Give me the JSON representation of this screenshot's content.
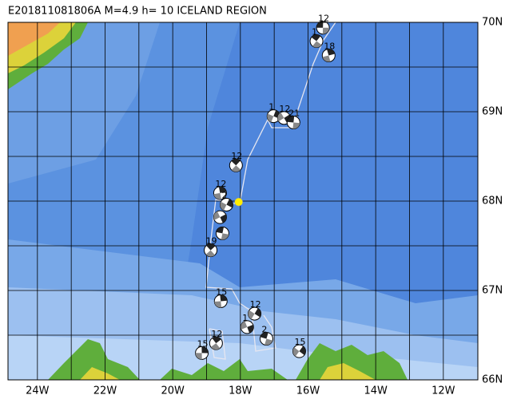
{
  "title": "E201811081806A  M=4.9  h= 10 ICELAND REGION",
  "lonlim": [
    -24.87,
    -10.98
  ],
  "latlim": [
    66,
    70
  ],
  "lonticks": [
    {
      "value": -24,
      "label": "24W"
    },
    {
      "value": -22,
      "label": "22W"
    },
    {
      "value": -20,
      "label": "20W"
    },
    {
      "value": -18,
      "label": "18W"
    },
    {
      "value": -16,
      "label": "16W"
    },
    {
      "value": -14,
      "label": "14W"
    },
    {
      "value": -12,
      "label": "12W"
    }
  ],
  "latticks": [
    {
      "value": 66,
      "label": "66N"
    },
    {
      "value": 67,
      "label": "67N"
    },
    {
      "value": 68,
      "label": "68N"
    },
    {
      "value": 69,
      "label": "69N"
    },
    {
      "value": 70,
      "label": "70N"
    }
  ],
  "epicenter": {
    "lon": -18.05,
    "lat": 67.99,
    "color": "#ffee00"
  },
  "events": [
    {
      "lon": -15.56,
      "lat": 69.94,
      "label": "12"
    },
    {
      "lon": -15.75,
      "lat": 69.79,
      "label": "1"
    },
    {
      "lon": -15.39,
      "lat": 69.63,
      "label": "18"
    },
    {
      "lon": -17.02,
      "lat": 68.95,
      "label": "1"
    },
    {
      "lon": -16.71,
      "lat": 68.93,
      "label": "12"
    },
    {
      "lon": -16.43,
      "lat": 68.88,
      "label": "21"
    },
    {
      "lon": -18.13,
      "lat": 68.4,
      "label": "12"
    },
    {
      "lon": -18.6,
      "lat": 68.09,
      "label": "12"
    },
    {
      "lon": -18.41,
      "lat": 67.96,
      "label": "2"
    },
    {
      "lon": -18.6,
      "lat": 67.82,
      "label": null
    },
    {
      "lon": -18.53,
      "lat": 67.64,
      "label": null
    },
    {
      "lon": -18.88,
      "lat": 67.45,
      "label": "19"
    },
    {
      "lon": -18.58,
      "lat": 66.88,
      "label": "15"
    },
    {
      "lon": -17.58,
      "lat": 66.74,
      "label": "12"
    },
    {
      "lon": -17.8,
      "lat": 66.59,
      "label": "1"
    },
    {
      "lon": -17.23,
      "lat": 66.46,
      "label": "2"
    },
    {
      "lon": -18.72,
      "lat": 66.41,
      "label": "12"
    },
    {
      "lon": -19.14,
      "lat": 66.3,
      "label": "15"
    },
    {
      "lon": -16.26,
      "lat": 66.32,
      "label": "15"
    }
  ]
}
